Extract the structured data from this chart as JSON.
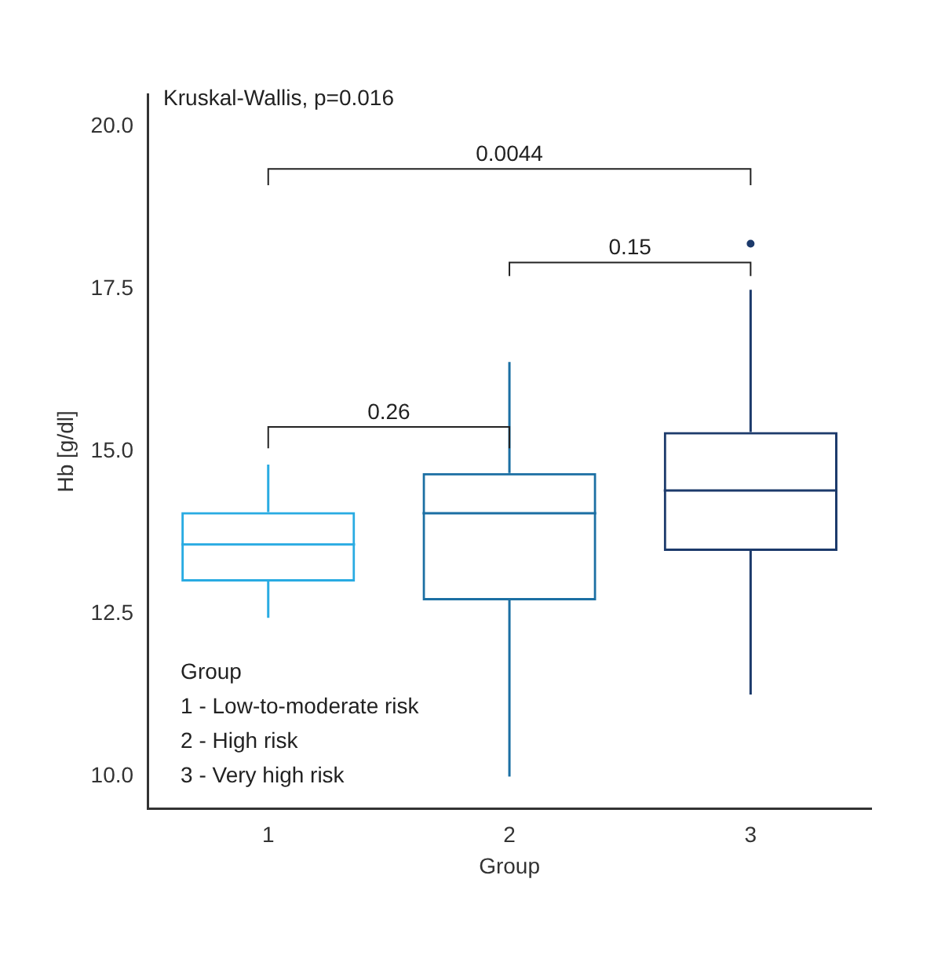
{
  "chart_data": {
    "type": "box",
    "xlabel": "Group",
    "ylabel": "Hb [g/dl]",
    "categories": [
      "1",
      "2",
      "3"
    ],
    "colors": [
      "#29abe2",
      "#1b6fa3",
      "#1c3a6b"
    ],
    "boxes": [
      {
        "low": 12.44,
        "q1": 13.0,
        "median": 13.57,
        "q3": 14.07,
        "high": 14.8
      },
      {
        "low": 10.0,
        "q1": 12.71,
        "median": 14.05,
        "q3": 14.67,
        "high": 16.38
      },
      {
        "low": 11.26,
        "q1": 13.47,
        "median": 14.4,
        "q3": 15.3,
        "high": 17.49,
        "outliers": [
          18.2
        ]
      }
    ],
    "ylim": [
      9.5,
      20.5
    ],
    "yticks": [
      {
        "value": 10,
        "label": "10.0"
      },
      12.5,
      {
        "value": 15,
        "label": "15.0"
      },
      17.5,
      {
        "value": 20,
        "label": "20.0"
      }
    ],
    "grid": false,
    "legend": false,
    "annotations": [
      "Kruskal-Wallis, p=0.016",
      "0.26",
      "0.15",
      "0.0044",
      "Group",
      "1 - Low-to-moderate risk",
      "2 - High risk",
      "3 - Very high risk"
    ]
  }
}
